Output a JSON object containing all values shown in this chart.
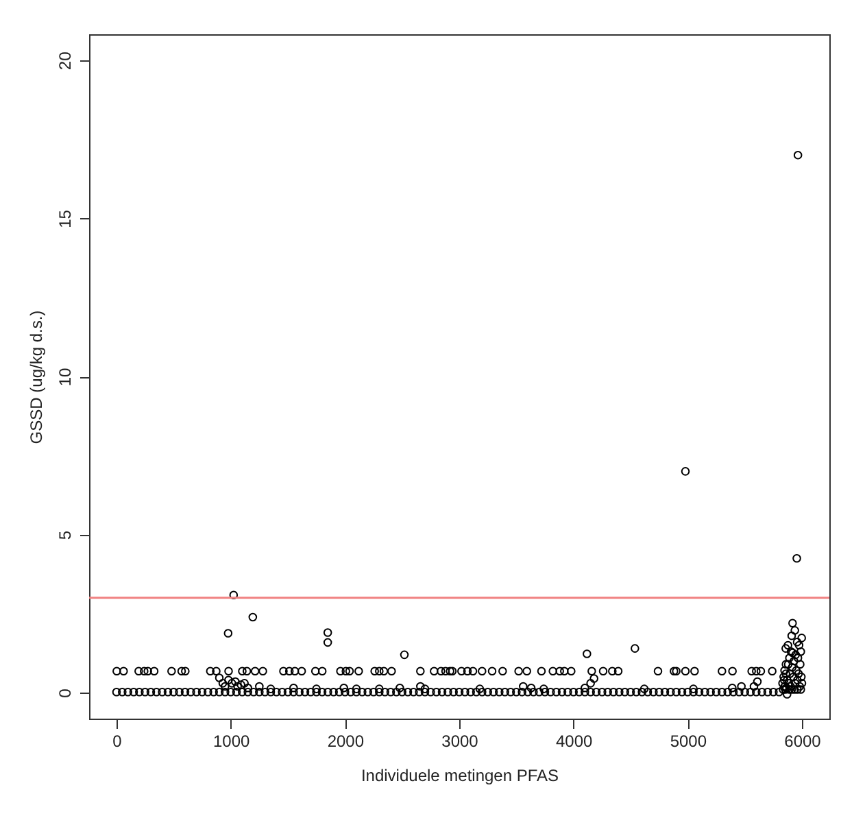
{
  "chart_data": {
    "type": "scatter",
    "xlabel": "Individuele metingen PFAS",
    "ylabel": "GSSD (ug/kg d.s.)",
    "xlim": [
      -240,
      6240
    ],
    "ylim": [
      -0.82,
      20.82
    ],
    "xticks": [
      0,
      1000,
      2000,
      3000,
      4000,
      5000,
      6000
    ],
    "yticks": [
      0,
      5,
      10,
      15,
      20
    ],
    "grid": false,
    "marker": "circle",
    "ref_lines": [
      {
        "axis": "y",
        "value": 3,
        "color": "#f08080"
      }
    ],
    "series": [
      {
        "color": "#000000",
        "x": [
          0,
          50,
          100,
          150,
          200,
          250,
          300,
          350,
          400,
          450,
          500,
          550,
          600,
          650,
          700,
          750,
          800,
          850,
          900,
          950,
          1000,
          1050,
          1100,
          1150,
          1200,
          1250,
          1300,
          1350,
          1400,
          1450,
          1500,
          1550,
          1600,
          1650,
          1700,
          1750,
          1800,
          1850,
          1900,
          1950,
          2000,
          2050,
          2100,
          2150,
          2200,
          2250,
          2300,
          2350,
          2400,
          2450,
          2500,
          2550,
          2600,
          2650,
          2700,
          2750,
          2800,
          2850,
          2900,
          2950,
          3000,
          3050,
          3100,
          3150,
          3200,
          3250,
          3300,
          3350,
          3400,
          3450,
          3500,
          3550,
          3600,
          3650,
          3700,
          3750,
          3800,
          3850,
          3900,
          3950,
          4000,
          4050,
          4100,
          4150,
          4200,
          4250,
          4300,
          4350,
          4400,
          4450,
          4500,
          4550,
          4600,
          4650,
          4700,
          4750,
          4800,
          4850,
          4900,
          4950,
          5000,
          5050,
          5100,
          5150,
          5200,
          5250,
          5300,
          5350,
          5400,
          5450,
          5500,
          5550,
          5600,
          5650,
          5700,
          5750,
          5800,
          2,
          62,
          194,
          242,
          274,
          330,
          482,
          570,
          602,
          821,
          873,
          981,
          1101,
          1141,
          1213,
          1281,
          1461,
          1513,
          1561,
          1621,
          1741,
          1801,
          1960,
          2008,
          2040,
          2120,
          2260,
          2300,
          2340,
          2408,
          2660,
          2780,
          2840,
          2880,
          2940,
          3020,
          2920,
          3072,
          3120,
          3200,
          3288,
          3380,
          3520,
          3592,
          3720,
          3820,
          3880,
          3920,
          3980,
          4160,
          4260,
          4340,
          4392,
          4740,
          4880,
          4900,
          4980,
          5060,
          5300,
          5392,
          5560,
          5600,
          5640,
          5740,
          1025,
          1193,
          977,
          1849,
          1849,
          2520,
          4118,
          4538,
          4980,
          900,
          930,
          950,
          980,
          1010,
          1040,
          1060,
          1090,
          1120,
          1150,
          1250,
          1350,
          1550,
          1750,
          1990,
          2100,
          2300,
          2480,
          2660,
          2700,
          3180,
          3560,
          3630,
          3740,
          4100,
          4180,
          4150,
          4620,
          5050,
          5390,
          5470,
          5580,
          5610,
          5830,
          5840,
          5850,
          5858,
          5860,
          5870,
          5870,
          5878,
          5880,
          5885,
          5890,
          5895,
          5900,
          5905,
          5910,
          5915,
          5918,
          5918,
          5925,
          5930,
          5938,
          5940,
          5945,
          5950,
          5955,
          5958,
          5960,
          5965,
          5965,
          5970,
          5975,
          5980,
          5985,
          5990,
          5995,
          5998,
          6000,
          5835,
          5845,
          5855,
          5865,
          5890,
          5910,
          5935,
          5960,
          5990,
          5860,
          5848
        ],
        "values": [
          0.02,
          0.02,
          0.02,
          0.02,
          0.02,
          0.02,
          0.02,
          0.02,
          0.02,
          0.02,
          0.02,
          0.02,
          0.02,
          0.02,
          0.02,
          0.02,
          0.02,
          0.02,
          0.02,
          0.02,
          0.02,
          0.02,
          0.02,
          0.02,
          0.02,
          0.02,
          0.02,
          0.02,
          0.02,
          0.02,
          0.02,
          0.02,
          0.02,
          0.02,
          0.02,
          0.02,
          0.02,
          0.02,
          0.02,
          0.02,
          0.02,
          0.02,
          0.02,
          0.02,
          0.02,
          0.02,
          0.02,
          0.02,
          0.02,
          0.02,
          0.02,
          0.02,
          0.02,
          0.02,
          0.02,
          0.02,
          0.02,
          0.02,
          0.02,
          0.02,
          0.02,
          0.02,
          0.02,
          0.02,
          0.02,
          0.02,
          0.02,
          0.02,
          0.02,
          0.02,
          0.02,
          0.02,
          0.02,
          0.02,
          0.02,
          0.02,
          0.02,
          0.02,
          0.02,
          0.02,
          0.02,
          0.02,
          0.02,
          0.02,
          0.02,
          0.02,
          0.02,
          0.02,
          0.02,
          0.02,
          0.02,
          0.02,
          0.02,
          0.02,
          0.02,
          0.02,
          0.02,
          0.02,
          0.02,
          0.02,
          0.02,
          0.02,
          0.02,
          0.02,
          0.02,
          0.02,
          0.02,
          0.02,
          0.02,
          0.02,
          0.02,
          0.02,
          0.02,
          0.02,
          0.02,
          0.02,
          0.02,
          0.68,
          0.68,
          0.68,
          0.68,
          0.68,
          0.68,
          0.68,
          0.68,
          0.68,
          0.68,
          0.68,
          0.68,
          0.68,
          0.68,
          0.68,
          0.68,
          0.68,
          0.68,
          0.68,
          0.68,
          0.68,
          0.68,
          0.68,
          0.68,
          0.68,
          0.68,
          0.68,
          0.68,
          0.68,
          0.68,
          0.68,
          0.68,
          0.68,
          0.68,
          0.68,
          0.68,
          0.68,
          0.68,
          0.68,
          0.68,
          0.68,
          0.68,
          0.68,
          0.68,
          0.68,
          0.68,
          0.68,
          0.68,
          0.68,
          0.68,
          0.68,
          0.68,
          0.68,
          0.68,
          0.68,
          0.68,
          0.68,
          0.68,
          0.68,
          0.68,
          0.68,
          0.68,
          0.68,
          0.68,
          3.09,
          2.39,
          1.88,
          1.9,
          1.59,
          1.2,
          1.23,
          1.4,
          7.0,
          0.47,
          0.3,
          0.2,
          0.4,
          0.3,
          0.35,
          0.2,
          0.25,
          0.3,
          0.15,
          0.2,
          0.12,
          0.15,
          0.12,
          0.15,
          0.12,
          0.12,
          0.15,
          0.2,
          0.12,
          0.12,
          0.2,
          0.15,
          0.12,
          0.15,
          0.45,
          0.3,
          0.12,
          0.12,
          0.15,
          0.2,
          0.2,
          0.35,
          0.3,
          0.5,
          0.2,
          1.4,
          0.6,
          -0.05,
          0.4,
          1.5,
          0.9,
          0.3,
          1.1,
          0.6,
          0.2,
          1.3,
          1.8,
          0.8,
          2.2,
          1.26,
          0.5,
          1.0,
          1.97,
          0.3,
          1.2,
          0.7,
          4.25,
          1.6,
          0.4,
          17.0,
          1.1,
          0.6,
          1.5,
          0.2,
          0.9,
          1.3,
          0.5,
          1.73,
          0.3,
          0.1,
          0.4,
          0.1,
          0.15,
          0.1,
          0.1,
          0.1,
          0.1,
          0.1,
          0.9,
          0.7
        ]
      }
    ]
  }
}
